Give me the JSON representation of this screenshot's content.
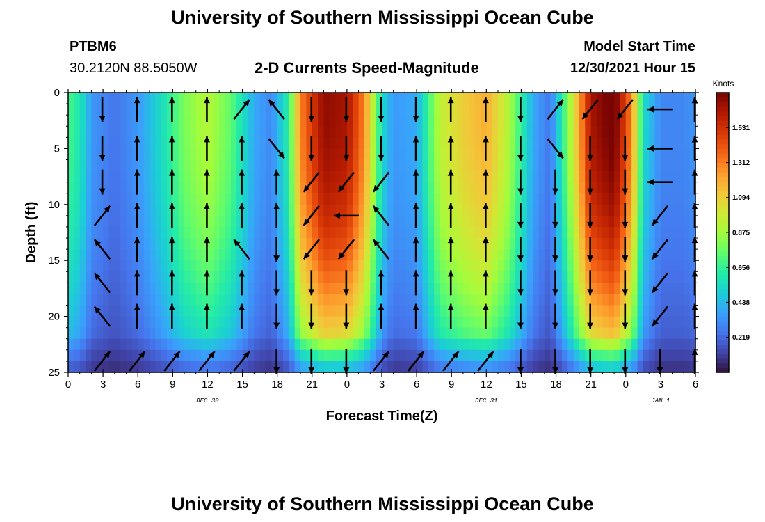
{
  "header": {
    "title": "University of Southern Mississippi Ocean Cube",
    "station_id": "PTBM6",
    "coordinates": "30.2120N  88.5050W",
    "subtitle": "2-D Currents Speed-Magnitude",
    "model_start_label": "Model Start Time",
    "model_start_value": "12/30/2021 Hour 15"
  },
  "footer": {
    "title": "University of Southern Mississippi Ocean Cube"
  },
  "chart_data": {
    "type": "heatmap",
    "title": "2-D Currents Speed-Magnitude",
    "xlabel": "Forecast Time(Z)",
    "ylabel": "Depth (ft)",
    "x_unit": "hours since 12/30 00Z",
    "xlim": [
      0,
      54
    ],
    "ylim": [
      0,
      25
    ],
    "y_inverted": true,
    "x_ticks": [
      0,
      3,
      6,
      9,
      12,
      15,
      18,
      21,
      24,
      27,
      30,
      33,
      36,
      39,
      42,
      45,
      48,
      51,
      54
    ],
    "x_tick_labels": [
      "0",
      "3",
      "6",
      "9",
      "12",
      "15",
      "18",
      "21",
      "0",
      "3",
      "6",
      "9",
      "12",
      "15",
      "18",
      "21",
      "0",
      "3",
      "6"
    ],
    "y_ticks": [
      0,
      5,
      10,
      15,
      20,
      25
    ],
    "y_tick_labels": [
      "0",
      "5",
      "10",
      "15",
      "20",
      "25"
    ],
    "date_labels": [
      {
        "x": 12,
        "text": "DEC 30"
      },
      {
        "x": 36,
        "text": "DEC 31"
      },
      {
        "x": 51,
        "text": "JAN 1"
      }
    ],
    "colorbar": {
      "title": "Knots",
      "min": 0,
      "max": 1.75,
      "ticks": [
        0.219,
        0.438,
        0.656,
        0.875,
        1.094,
        1.312,
        1.531
      ],
      "tick_labels": [
        "0.219",
        "0.438",
        "0.656",
        "0.875",
        "1.094",
        "1.312",
        "1.531"
      ],
      "colors": [
        "#30123b",
        "#4145ab",
        "#4675ed",
        "#39a2fc",
        "#1bcfd4",
        "#24eca6",
        "#61fc6c",
        "#a4fc3b",
        "#d1e834",
        "#f3c63a",
        "#fe9b2d",
        "#f36315",
        "#d93806",
        "#b11901",
        "#7a0402"
      ]
    },
    "speed_profile_surface": [
      [
        0,
        0.7
      ],
      [
        1,
        0.6
      ],
      [
        2,
        0.35
      ],
      [
        4,
        0.25
      ],
      [
        6,
        0.35
      ],
      [
        8,
        0.55
      ],
      [
        10,
        0.8
      ],
      [
        12,
        0.92
      ],
      [
        14,
        0.75
      ],
      [
        16,
        0.4
      ],
      [
        17.5,
        0.3
      ],
      [
        19,
        0.65
      ],
      [
        20,
        1.3
      ],
      [
        22,
        1.7
      ],
      [
        24,
        1.65
      ],
      [
        25.5,
        1.3
      ],
      [
        27,
        0.55
      ],
      [
        28,
        0.35
      ],
      [
        30,
        0.4
      ],
      [
        32,
        0.95
      ],
      [
        34,
        1.1
      ],
      [
        36,
        1.2
      ],
      [
        38,
        0.9
      ],
      [
        40,
        0.4
      ],
      [
        41.5,
        0.25
      ],
      [
        43,
        0.8
      ],
      [
        45,
        1.65
      ],
      [
        47,
        1.8
      ],
      [
        48.5,
        1.3
      ],
      [
        49.5,
        0.55
      ],
      [
        51,
        0.3
      ],
      [
        53,
        0.3
      ],
      [
        54,
        0.35
      ]
    ],
    "vector_field": {
      "columns_x": [
        3,
        6,
        9,
        12,
        15,
        18,
        21,
        24,
        27,
        30,
        33,
        36,
        39,
        42,
        45,
        48,
        51,
        54
      ],
      "row_depths": [
        1.5,
        5,
        8,
        11,
        14,
        17,
        20,
        24
      ],
      "rows": [
        [
          "S",
          "N",
          "N",
          "N",
          "NE",
          "NW",
          "S",
          "S",
          "S",
          "S",
          "N",
          "N",
          "S",
          "NE",
          "SW",
          "SW",
          "W",
          "N"
        ],
        [
          "S",
          "N",
          "N",
          "N",
          "N",
          "SE",
          "S",
          "S",
          "S",
          "N",
          "N",
          "N",
          "S",
          "SE",
          "S",
          "S",
          "W",
          "N"
        ],
        [
          "S",
          "N",
          "N",
          "N",
          "N",
          "N",
          "SW",
          "SW",
          "SW",
          "N",
          "N",
          "N",
          "S",
          "S",
          "S",
          "S",
          "W",
          "N"
        ],
        [
          "NE",
          "N",
          "N",
          "N",
          "N",
          "N",
          "SW",
          "W",
          "NW",
          "N",
          "N",
          "N",
          "S",
          "S",
          "S",
          "S",
          "SW",
          "N"
        ],
        [
          "NW",
          "N",
          "N",
          "N",
          "NW",
          "S",
          "SW",
          "SW",
          "NW",
          "N",
          "N",
          "N",
          "S",
          "S",
          "S",
          "S",
          "SW",
          "N"
        ],
        [
          "NW",
          "N",
          "N",
          "N",
          "N",
          "S",
          "S",
          "S",
          "N",
          "N",
          "N",
          "N",
          "S",
          "S",
          "S",
          "S",
          "SW",
          "N"
        ],
        [
          "NW",
          "N",
          "N",
          "N",
          "N",
          "S",
          "S",
          "S",
          "N",
          "N",
          "N",
          "N",
          "S",
          "S",
          "S",
          "S",
          "SW",
          "N"
        ],
        [
          "NE",
          "NE",
          "NE",
          "NE",
          "NE",
          "S",
          "S",
          "S",
          "NE",
          "NE",
          "NE",
          "NE",
          "S",
          "S",
          "S",
          "S",
          "S",
          "N"
        ]
      ]
    }
  }
}
